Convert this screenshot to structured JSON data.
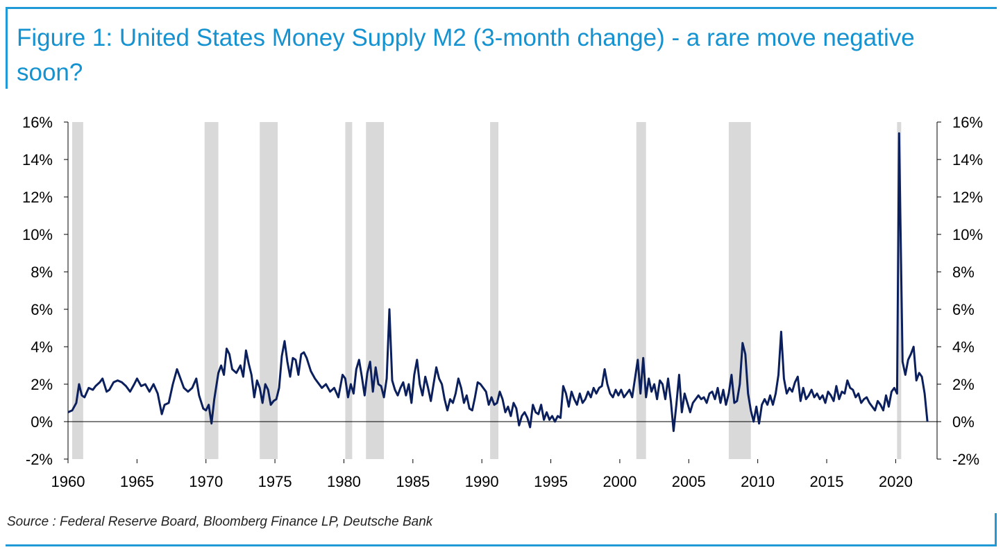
{
  "figure": {
    "title": "Figure 1: United States Money Supply M2 (3-month change) - a rare move negative soon?",
    "source": "Source : Federal Reserve Board, Bloomberg Finance LP, Deutsche Bank"
  },
  "colors": {
    "accent": "#1f9ad6",
    "title_text": "#1592d0",
    "line": "#0b1f5c",
    "recession_shading": "#d9d9d9"
  },
  "chart_data": {
    "type": "line",
    "title": "Figure 1: United States Money Supply M2 (3-month change) - a rare move negative soon?",
    "xlabel": "",
    "ylabel": "",
    "xlim": [
      1960,
      2023
    ],
    "ylim": [
      -2,
      16
    ],
    "x_ticks": [
      "1960",
      "1965",
      "1970",
      "1975",
      "1980",
      "1985",
      "1990",
      "1995",
      "2000",
      "2005",
      "2010",
      "2015",
      "2020"
    ],
    "y_ticks_left": [
      "-2%",
      "0%",
      "2%",
      "4%",
      "6%",
      "8%",
      "10%",
      "12%",
      "14%",
      "16%"
    ],
    "y_ticks_right": [
      "-2%",
      "0%",
      "2%",
      "4%",
      "6%",
      "8%",
      "10%",
      "12%",
      "14%",
      "16%"
    ],
    "recessions": [
      [
        1960.3,
        1961.1
      ],
      [
        1969.9,
        1970.9
      ],
      [
        1973.9,
        1975.2
      ],
      [
        1980.1,
        1980.6
      ],
      [
        1981.6,
        1982.9
      ],
      [
        1990.6,
        1991.2
      ],
      [
        2001.2,
        2001.9
      ],
      [
        2007.9,
        2009.5
      ],
      [
        2020.1,
        2020.4
      ]
    ],
    "series": [
      {
        "values": [
          [
            1960.0,
            0.5
          ],
          [
            1960.3,
            0.6
          ],
          [
            1960.6,
            1.0
          ],
          [
            1960.8,
            2.0
          ],
          [
            1961.0,
            1.4
          ],
          [
            1961.2,
            1.3
          ],
          [
            1961.5,
            1.8
          ],
          [
            1961.8,
            1.7
          ],
          [
            1962.0,
            1.9
          ],
          [
            1962.3,
            2.1
          ],
          [
            1962.5,
            2.3
          ],
          [
            1962.8,
            1.6
          ],
          [
            1963.0,
            1.7
          ],
          [
            1963.3,
            2.1
          ],
          [
            1963.6,
            2.2
          ],
          [
            1963.9,
            2.1
          ],
          [
            1964.2,
            1.9
          ],
          [
            1964.5,
            1.6
          ],
          [
            1964.8,
            2.0
          ],
          [
            1965.0,
            2.3
          ],
          [
            1965.3,
            1.9
          ],
          [
            1965.6,
            2.0
          ],
          [
            1965.9,
            1.6
          ],
          [
            1966.2,
            2.0
          ],
          [
            1966.5,
            1.5
          ],
          [
            1966.8,
            0.4
          ],
          [
            1967.0,
            0.9
          ],
          [
            1967.3,
            1.0
          ],
          [
            1967.6,
            2.0
          ],
          [
            1967.9,
            2.8
          ],
          [
            1968.1,
            2.4
          ],
          [
            1968.4,
            1.8
          ],
          [
            1968.7,
            1.6
          ],
          [
            1969.0,
            1.8
          ],
          [
            1969.3,
            2.3
          ],
          [
            1969.5,
            1.4
          ],
          [
            1969.8,
            0.7
          ],
          [
            1970.0,
            0.6
          ],
          [
            1970.2,
            0.9
          ],
          [
            1970.4,
            -0.1
          ],
          [
            1970.6,
            1.2
          ],
          [
            1970.9,
            2.6
          ],
          [
            1971.1,
            3.0
          ],
          [
            1971.3,
            2.5
          ],
          [
            1971.5,
            3.9
          ],
          [
            1971.7,
            3.6
          ],
          [
            1971.9,
            2.8
          ],
          [
            1972.2,
            2.6
          ],
          [
            1972.5,
            3.0
          ],
          [
            1972.7,
            2.4
          ],
          [
            1972.9,
            3.8
          ],
          [
            1973.1,
            3.1
          ],
          [
            1973.3,
            2.5
          ],
          [
            1973.5,
            1.3
          ],
          [
            1973.7,
            2.2
          ],
          [
            1973.9,
            1.8
          ],
          [
            1974.1,
            1.0
          ],
          [
            1974.3,
            2.0
          ],
          [
            1974.5,
            1.7
          ],
          [
            1974.7,
            0.9
          ],
          [
            1974.9,
            1.1
          ],
          [
            1975.1,
            1.2
          ],
          [
            1975.3,
            1.8
          ],
          [
            1975.5,
            3.5
          ],
          [
            1975.7,
            4.3
          ],
          [
            1975.9,
            3.2
          ],
          [
            1976.1,
            2.4
          ],
          [
            1976.3,
            3.4
          ],
          [
            1976.5,
            3.3
          ],
          [
            1976.7,
            2.5
          ],
          [
            1976.9,
            3.6
          ],
          [
            1977.1,
            3.7
          ],
          [
            1977.3,
            3.4
          ],
          [
            1977.6,
            2.7
          ],
          [
            1977.9,
            2.3
          ],
          [
            1978.1,
            2.1
          ],
          [
            1978.4,
            1.8
          ],
          [
            1978.7,
            2.0
          ],
          [
            1979.0,
            1.6
          ],
          [
            1979.3,
            1.8
          ],
          [
            1979.6,
            1.3
          ],
          [
            1979.9,
            2.5
          ],
          [
            1980.1,
            2.3
          ],
          [
            1980.3,
            1.3
          ],
          [
            1980.5,
            2.0
          ],
          [
            1980.7,
            1.5
          ],
          [
            1980.9,
            2.8
          ],
          [
            1981.1,
            3.3
          ],
          [
            1981.3,
            2.4
          ],
          [
            1981.5,
            1.4
          ],
          [
            1981.7,
            2.6
          ],
          [
            1981.9,
            3.2
          ],
          [
            1982.1,
            1.6
          ],
          [
            1982.3,
            2.9
          ],
          [
            1982.5,
            2.0
          ],
          [
            1982.7,
            1.9
          ],
          [
            1982.9,
            1.3
          ],
          [
            1983.1,
            2.3
          ],
          [
            1983.3,
            6.0
          ],
          [
            1983.5,
            2.2
          ],
          [
            1983.7,
            1.7
          ],
          [
            1983.9,
            1.4
          ],
          [
            1984.1,
            1.8
          ],
          [
            1984.3,
            2.1
          ],
          [
            1984.5,
            1.4
          ],
          [
            1984.7,
            2.0
          ],
          [
            1984.9,
            1.0
          ],
          [
            1985.1,
            2.5
          ],
          [
            1985.3,
            3.3
          ],
          [
            1985.5,
            2.0
          ],
          [
            1985.7,
            1.4
          ],
          [
            1985.9,
            2.4
          ],
          [
            1986.1,
            1.8
          ],
          [
            1986.3,
            1.1
          ],
          [
            1986.5,
            2.0
          ],
          [
            1986.7,
            2.9
          ],
          [
            1986.9,
            2.3
          ],
          [
            1987.1,
            2.0
          ],
          [
            1987.3,
            1.2
          ],
          [
            1987.5,
            0.6
          ],
          [
            1987.7,
            1.2
          ],
          [
            1987.9,
            1.0
          ],
          [
            1988.1,
            1.5
          ],
          [
            1988.3,
            2.3
          ],
          [
            1988.5,
            1.8
          ],
          [
            1988.7,
            1.0
          ],
          [
            1988.9,
            1.4
          ],
          [
            1989.1,
            0.7
          ],
          [
            1989.3,
            0.6
          ],
          [
            1989.5,
            1.3
          ],
          [
            1989.7,
            2.1
          ],
          [
            1989.9,
            2.0
          ],
          [
            1990.1,
            1.8
          ],
          [
            1990.3,
            1.6
          ],
          [
            1990.5,
            0.9
          ],
          [
            1990.7,
            1.3
          ],
          [
            1990.9,
            0.9
          ],
          [
            1991.1,
            1.0
          ],
          [
            1991.3,
            1.6
          ],
          [
            1991.5,
            1.2
          ],
          [
            1991.7,
            0.5
          ],
          [
            1991.9,
            0.8
          ],
          [
            1992.1,
            0.3
          ],
          [
            1992.3,
            1.0
          ],
          [
            1992.5,
            0.7
          ],
          [
            1992.7,
            -0.2
          ],
          [
            1992.9,
            0.3
          ],
          [
            1993.1,
            0.5
          ],
          [
            1993.3,
            0.2
          ],
          [
            1993.5,
            -0.3
          ],
          [
            1993.7,
            0.9
          ],
          [
            1993.9,
            0.5
          ],
          [
            1994.1,
            0.4
          ],
          [
            1994.3,
            0.9
          ],
          [
            1994.5,
            0.1
          ],
          [
            1994.7,
            0.5
          ],
          [
            1994.9,
            0.1
          ],
          [
            1995.1,
            0.3
          ],
          [
            1995.3,
            0.0
          ],
          [
            1995.5,
            0.3
          ],
          [
            1995.7,
            0.2
          ],
          [
            1995.9,
            1.9
          ],
          [
            1996.1,
            1.5
          ],
          [
            1996.3,
            0.8
          ],
          [
            1996.5,
            1.6
          ],
          [
            1996.7,
            1.2
          ],
          [
            1996.9,
            0.9
          ],
          [
            1997.1,
            1.5
          ],
          [
            1997.3,
            1.0
          ],
          [
            1997.5,
            1.2
          ],
          [
            1997.7,
            1.6
          ],
          [
            1997.9,
            1.3
          ],
          [
            1998.1,
            1.8
          ],
          [
            1998.3,
            1.5
          ],
          [
            1998.5,
            1.8
          ],
          [
            1998.7,
            1.9
          ],
          [
            1998.9,
            2.8
          ],
          [
            1999.1,
            2.0
          ],
          [
            1999.3,
            1.5
          ],
          [
            1999.5,
            1.3
          ],
          [
            1999.7,
            1.7
          ],
          [
            1999.9,
            1.4
          ],
          [
            2000.1,
            1.7
          ],
          [
            2000.3,
            1.3
          ],
          [
            2000.5,
            1.5
          ],
          [
            2000.7,
            1.7
          ],
          [
            2000.9,
            1.3
          ],
          [
            2001.1,
            2.3
          ],
          [
            2001.3,
            3.3
          ],
          [
            2001.5,
            1.5
          ],
          [
            2001.7,
            3.4
          ],
          [
            2001.9,
            1.3
          ],
          [
            2002.1,
            2.3
          ],
          [
            2002.3,
            1.6
          ],
          [
            2002.5,
            2.0
          ],
          [
            2002.7,
            1.2
          ],
          [
            2002.9,
            2.2
          ],
          [
            2003.1,
            2.0
          ],
          [
            2003.3,
            1.2
          ],
          [
            2003.5,
            2.3
          ],
          [
            2003.7,
            1.1
          ],
          [
            2003.9,
            -0.5
          ],
          [
            2004.1,
            0.9
          ],
          [
            2004.3,
            2.5
          ],
          [
            2004.5,
            0.5
          ],
          [
            2004.7,
            1.5
          ],
          [
            2004.9,
            1.0
          ],
          [
            2005.1,
            0.5
          ],
          [
            2005.3,
            1.0
          ],
          [
            2005.5,
            1.2
          ],
          [
            2005.7,
            1.4
          ],
          [
            2005.9,
            1.2
          ],
          [
            2006.1,
            1.3
          ],
          [
            2006.3,
            1.0
          ],
          [
            2006.5,
            1.5
          ],
          [
            2006.7,
            1.6
          ],
          [
            2006.9,
            1.2
          ],
          [
            2007.1,
            1.8
          ],
          [
            2007.3,
            1.0
          ],
          [
            2007.5,
            1.7
          ],
          [
            2007.7,
            0.9
          ],
          [
            2007.9,
            1.5
          ],
          [
            2008.1,
            2.5
          ],
          [
            2008.3,
            1.0
          ],
          [
            2008.5,
            1.1
          ],
          [
            2008.7,
            2.0
          ],
          [
            2008.9,
            4.2
          ],
          [
            2009.1,
            3.6
          ],
          [
            2009.3,
            1.5
          ],
          [
            2009.5,
            0.6
          ],
          [
            2009.7,
            0.0
          ],
          [
            2009.9,
            0.8
          ],
          [
            2010.1,
            -0.1
          ],
          [
            2010.3,
            0.9
          ],
          [
            2010.5,
            1.2
          ],
          [
            2010.7,
            0.9
          ],
          [
            2010.9,
            1.4
          ],
          [
            2011.1,
            0.9
          ],
          [
            2011.3,
            1.5
          ],
          [
            2011.5,
            2.5
          ],
          [
            2011.7,
            4.8
          ],
          [
            2011.9,
            2.3
          ],
          [
            2012.1,
            1.5
          ],
          [
            2012.3,
            1.8
          ],
          [
            2012.5,
            1.6
          ],
          [
            2012.7,
            2.1
          ],
          [
            2012.9,
            2.4
          ],
          [
            2013.1,
            1.1
          ],
          [
            2013.3,
            1.8
          ],
          [
            2013.5,
            1.2
          ],
          [
            2013.7,
            1.4
          ],
          [
            2013.9,
            1.7
          ],
          [
            2014.1,
            1.3
          ],
          [
            2014.3,
            1.5
          ],
          [
            2014.5,
            1.2
          ],
          [
            2014.7,
            1.4
          ],
          [
            2014.9,
            1.0
          ],
          [
            2015.1,
            1.6
          ],
          [
            2015.3,
            1.4
          ],
          [
            2015.5,
            1.1
          ],
          [
            2015.7,
            1.9
          ],
          [
            2015.9,
            1.2
          ],
          [
            2016.1,
            1.6
          ],
          [
            2016.3,
            1.5
          ],
          [
            2016.5,
            2.2
          ],
          [
            2016.7,
            1.8
          ],
          [
            2016.9,
            1.7
          ],
          [
            2017.1,
            1.3
          ],
          [
            2017.3,
            1.5
          ],
          [
            2017.5,
            1.0
          ],
          [
            2017.7,
            1.2
          ],
          [
            2017.9,
            1.3
          ],
          [
            2018.1,
            1.0
          ],
          [
            2018.3,
            0.8
          ],
          [
            2018.5,
            0.6
          ],
          [
            2018.7,
            1.1
          ],
          [
            2018.9,
            0.9
          ],
          [
            2019.1,
            0.6
          ],
          [
            2019.3,
            1.4
          ],
          [
            2019.5,
            0.8
          ],
          [
            2019.7,
            1.6
          ],
          [
            2019.9,
            1.8
          ],
          [
            2020.1,
            1.5
          ],
          [
            2020.25,
            15.4
          ],
          [
            2020.5,
            3.2
          ],
          [
            2020.7,
            2.5
          ],
          [
            2020.9,
            3.3
          ],
          [
            2021.1,
            3.6
          ],
          [
            2021.3,
            4.0
          ],
          [
            2021.5,
            2.2
          ],
          [
            2021.7,
            2.6
          ],
          [
            2021.9,
            2.4
          ],
          [
            2022.1,
            1.5
          ],
          [
            2022.3,
            0.0
          ]
        ]
      }
    ]
  }
}
